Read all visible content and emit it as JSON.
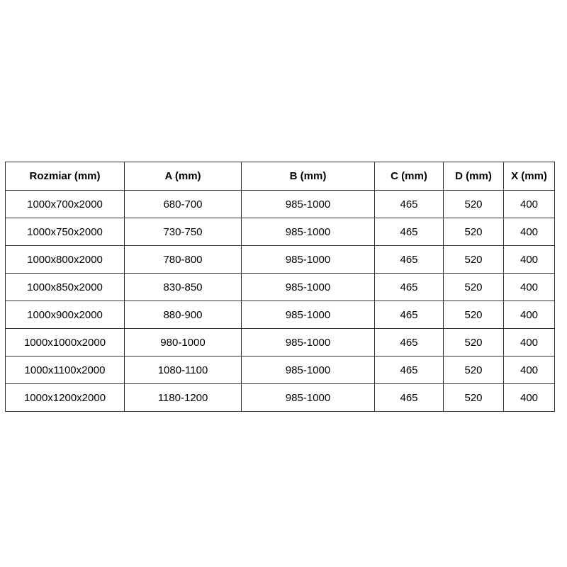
{
  "page": {
    "background_color": "#ffffff"
  },
  "table": {
    "border_color": "#2f2f2f",
    "text_color": "#000000",
    "headers": [
      "Rozmiar (mm)",
      "A (mm)",
      "B (mm)",
      "C (mm)",
      "D (mm)",
      "X (mm)"
    ],
    "rows": [
      [
        "1000x700x2000",
        "680-700",
        "985-1000",
        "465",
        "520",
        "400"
      ],
      [
        "1000x750x2000",
        "730-750",
        "985-1000",
        "465",
        "520",
        "400"
      ],
      [
        "1000x800x2000",
        "780-800",
        "985-1000",
        "465",
        "520",
        "400"
      ],
      [
        "1000x850x2000",
        "830-850",
        "985-1000",
        "465",
        "520",
        "400"
      ],
      [
        "1000x900x2000",
        "880-900",
        "985-1000",
        "465",
        "520",
        "400"
      ],
      [
        "1000x1000x2000",
        "980-1000",
        "985-1000",
        "465",
        "520",
        "400"
      ],
      [
        "1000x1100x2000",
        "1080-1100",
        "985-1000",
        "465",
        "520",
        "400"
      ],
      [
        "1000x1200x2000",
        "1180-1200",
        "985-1000",
        "465",
        "520",
        "400"
      ]
    ]
  }
}
